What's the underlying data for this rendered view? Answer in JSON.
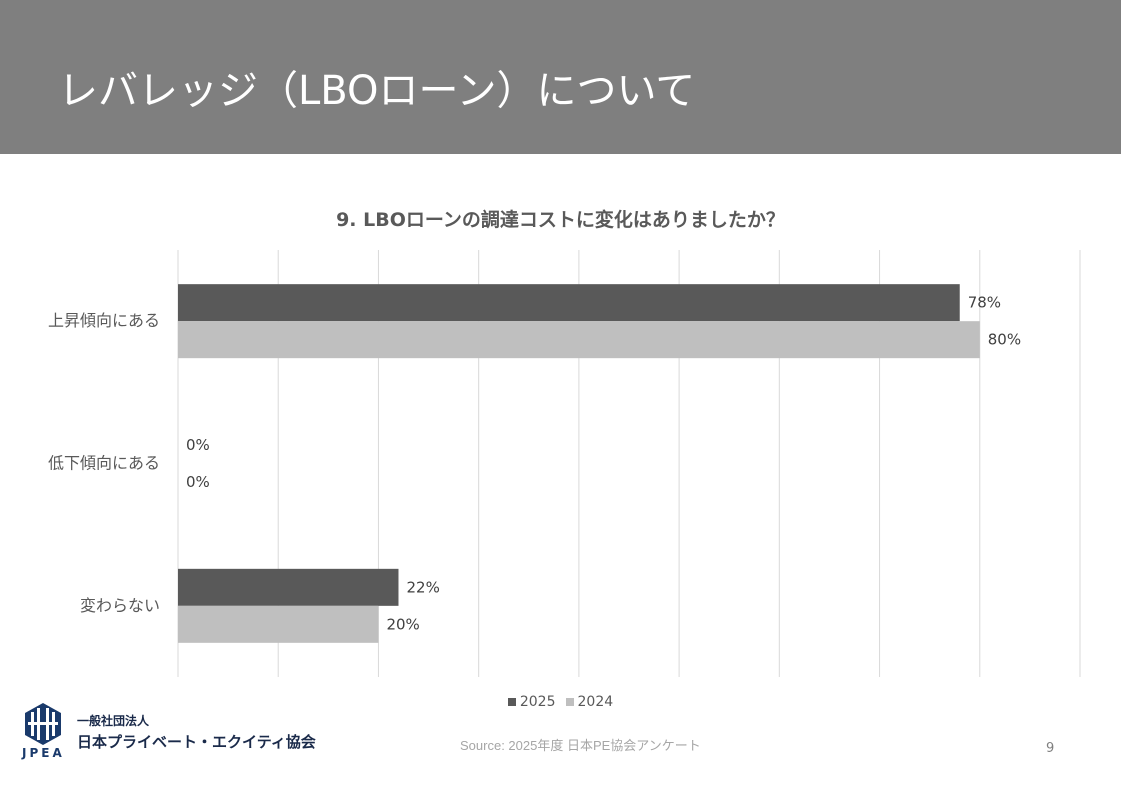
{
  "header": {
    "title": "レバレッジ（LBOローン）について"
  },
  "chart_data": {
    "type": "bar",
    "orientation": "horizontal",
    "title": "9. LBOローンの調達コストに変化はありましたか？",
    "categories": [
      "上昇傾向にある",
      "低下傾向にある",
      "変わらない"
    ],
    "series": [
      {
        "name": "2025",
        "values": [
          78,
          0,
          22
        ],
        "labels": [
          "78%",
          "0%",
          "22%"
        ],
        "color": "#595959"
      },
      {
        "name": "2024",
        "values": [
          80,
          0,
          20
        ],
        "labels": [
          "80%",
          "0%",
          "20%"
        ],
        "color": "#bfbfbf"
      }
    ],
    "xlim": [
      0,
      90
    ],
    "grid": true,
    "legend_position": "bottom"
  },
  "logo": {
    "sub": "一般社団法人",
    "main": "日本プライベート・エクイティ協会",
    "abbr": "JPEA"
  },
  "footer": {
    "source": "Source: 2025年度 日本PE協会アンケート",
    "page_number": "9"
  },
  "colors": {
    "header_bg": "#7f7f7f",
    "logo_navy": "#1a3a6b"
  }
}
